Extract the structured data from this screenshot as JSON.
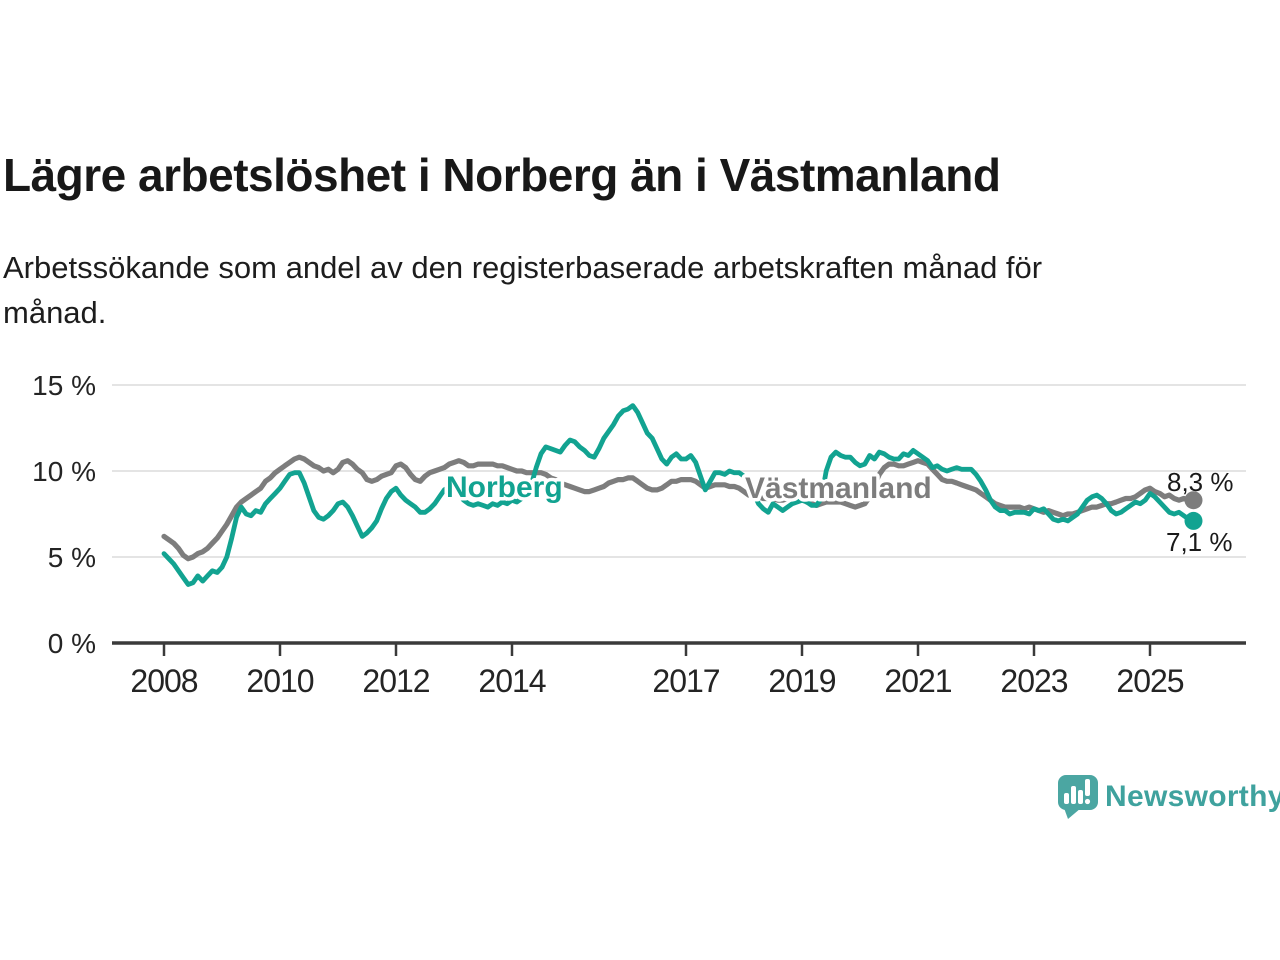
{
  "chart_data": {
    "type": "line",
    "title": "Lägre arbetslöshet i Norberg än i Västmanland",
    "subtitle": [
      "Arbetssökande som andel av den registerbaserade arbetskraften månad för",
      "månad."
    ],
    "x_unit": "month",
    "x_start": "2008-01",
    "x_end": "2025-10",
    "ylim": [
      0,
      15
    ],
    "grid": "horizontal-only",
    "legend": "inline-series-labels",
    "y_ticks": [
      {
        "value": 0,
        "label": "0 %"
      },
      {
        "value": 5,
        "label": "5 %"
      },
      {
        "value": 10,
        "label": "10 %"
      },
      {
        "value": 15,
        "label": "15 %"
      }
    ],
    "x_ticks": [
      {
        "year": 2008,
        "label": "2008"
      },
      {
        "year": 2010,
        "label": "2010"
      },
      {
        "year": 2012,
        "label": "2012"
      },
      {
        "year": 2014,
        "label": "2014"
      },
      {
        "year": 2017,
        "label": "2017"
      },
      {
        "year": 2019,
        "label": "2019"
      },
      {
        "year": 2021,
        "label": "2021"
      },
      {
        "year": 2023,
        "label": "2023"
      },
      {
        "year": 2025,
        "label": "2025"
      }
    ],
    "series": [
      {
        "name": "Västmanland",
        "color": "#7D7D7D",
        "end_value": 8.3,
        "end_value_label": "8,3 %",
        "values": [
          6.2,
          6.0,
          5.8,
          5.5,
          5.1,
          4.9,
          5.0,
          5.2,
          5.3,
          5.5,
          5.8,
          6.1,
          6.5,
          6.9,
          7.4,
          7.9,
          8.2,
          8.4,
          8.6,
          8.8,
          9.0,
          9.4,
          9.6,
          9.9,
          10.1,
          10.3,
          10.5,
          10.7,
          10.8,
          10.7,
          10.5,
          10.3,
          10.2,
          10.0,
          10.1,
          9.9,
          10.1,
          10.5,
          10.6,
          10.4,
          10.1,
          9.9,
          9.5,
          9.4,
          9.5,
          9.7,
          9.8,
          9.9,
          10.3,
          10.4,
          10.2,
          9.8,
          9.5,
          9.4,
          9.7,
          9.9,
          10.0,
          10.1,
          10.2,
          10.4,
          10.5,
          10.6,
          10.5,
          10.3,
          10.3,
          10.4,
          10.4,
          10.4,
          10.4,
          10.3,
          10.3,
          10.2,
          10.1,
          10.0,
          10.0,
          9.9,
          9.9,
          9.9,
          9.9,
          9.8,
          9.6,
          9.5,
          9.3,
          9.2,
          9.1,
          9.0,
          8.9,
          8.8,
          8.8,
          8.9,
          9.0,
          9.1,
          9.3,
          9.4,
          9.5,
          9.5,
          9.6,
          9.6,
          9.4,
          9.2,
          9.0,
          8.9,
          8.9,
          9.0,
          9.2,
          9.4,
          9.4,
          9.5,
          9.5,
          9.5,
          9.4,
          9.2,
          9.0,
          9.1,
          9.2,
          9.2,
          9.2,
          9.1,
          9.1,
          9.0,
          8.8,
          8.6,
          8.5,
          8.5,
          8.4,
          8.4,
          8.4,
          8.3,
          8.3,
          8.4,
          8.4,
          8.4,
          8.4,
          8.2,
          8.1,
          8.0,
          8.1,
          8.2,
          8.2,
          8.2,
          8.2,
          8.1,
          8.0,
          7.9,
          8.0,
          8.1,
          8.5,
          9.2,
          9.8,
          10.2,
          10.4,
          10.4,
          10.3,
          10.3,
          10.4,
          10.5,
          10.6,
          10.5,
          10.4,
          10.1,
          9.8,
          9.5,
          9.4,
          9.4,
          9.3,
          9.2,
          9.1,
          9.0,
          8.9,
          8.7,
          8.5,
          8.3,
          8.1,
          8.0,
          7.9,
          7.9,
          7.9,
          7.9,
          7.8,
          7.9,
          7.8,
          7.7,
          7.6,
          7.7,
          7.6,
          7.5,
          7.4,
          7.5,
          7.5,
          7.6,
          7.7,
          7.8,
          7.9,
          7.9,
          8.0,
          8.1,
          8.1,
          8.2,
          8.3,
          8.4,
          8.4,
          8.5,
          8.7,
          8.9,
          9.0,
          8.8,
          8.7,
          8.5,
          8.6,
          8.4,
          8.3,
          8.4,
          8.3,
          8.3
        ]
      },
      {
        "name": "Norberg",
        "color": "#12A391",
        "end_value": 7.1,
        "end_value_label": "7,1 %",
        "values": [
          5.2,
          4.9,
          4.6,
          4.2,
          3.8,
          3.4,
          3.5,
          3.9,
          3.6,
          3.9,
          4.2,
          4.1,
          4.4,
          5.0,
          6.1,
          7.3,
          7.9,
          7.5,
          7.4,
          7.7,
          7.6,
          8.1,
          8.4,
          8.7,
          9.0,
          9.4,
          9.8,
          9.9,
          9.9,
          9.3,
          8.5,
          7.7,
          7.3,
          7.2,
          7.4,
          7.7,
          8.1,
          8.2,
          7.9,
          7.4,
          6.8,
          6.2,
          6.4,
          6.7,
          7.1,
          7.8,
          8.4,
          8.8,
          9.0,
          8.6,
          8.3,
          8.1,
          7.9,
          7.6,
          7.6,
          7.8,
          8.1,
          8.5,
          8.9,
          9.1,
          8.9,
          8.6,
          8.3,
          8.1,
          8.0,
          8.1,
          8.0,
          7.9,
          8.1,
          8.0,
          8.2,
          8.1,
          8.3,
          8.2,
          8.4,
          8.9,
          9.2,
          10.2,
          11.0,
          11.4,
          11.3,
          11.2,
          11.1,
          11.5,
          11.8,
          11.7,
          11.4,
          11.2,
          10.9,
          10.8,
          11.3,
          11.9,
          12.3,
          12.7,
          13.2,
          13.5,
          13.6,
          13.8,
          13.4,
          12.8,
          12.2,
          11.9,
          11.3,
          10.7,
          10.4,
          10.8,
          11.0,
          10.7,
          10.7,
          10.9,
          10.5,
          9.7,
          8.9,
          9.4,
          9.9,
          9.9,
          9.8,
          10.0,
          9.9,
          9.9,
          9.7,
          9.3,
          8.7,
          8.1,
          7.8,
          7.6,
          8.1,
          7.9,
          7.7,
          7.9,
          8.1,
          8.2,
          8.3,
          8.2,
          8.0,
          8.0,
          8.4,
          10.0,
          10.8,
          11.1,
          10.9,
          10.8,
          10.8,
          10.5,
          10.3,
          10.4,
          10.9,
          10.7,
          11.1,
          11.0,
          10.8,
          10.7,
          10.7,
          11.0,
          10.9,
          11.2,
          11.0,
          10.8,
          10.6,
          10.2,
          10.3,
          10.1,
          10.0,
          10.1,
          10.2,
          10.1,
          10.1,
          10.1,
          9.8,
          9.4,
          8.9,
          8.3,
          7.9,
          7.7,
          7.7,
          7.5,
          7.6,
          7.6,
          7.6,
          7.5,
          7.8,
          7.7,
          7.8,
          7.5,
          7.2,
          7.1,
          7.2,
          7.1,
          7.3,
          7.5,
          7.9,
          8.3,
          8.5,
          8.6,
          8.4,
          8.1,
          7.7,
          7.5,
          7.6,
          7.8,
          8.0,
          8.2,
          8.1,
          8.3,
          8.7,
          8.5,
          8.2,
          7.9,
          7.6,
          7.5,
          7.6,
          7.4,
          7.2,
          7.1
        ]
      }
    ]
  },
  "logo": {
    "brand": "Newsworthy",
    "color": "#3FA29E",
    "icon": "bar-chart-speech-bubble"
  },
  "colors": {
    "background": "#FFFFFF",
    "gridline": "#DCDCDC",
    "axis": "#3A3A3A",
    "text": "#181818"
  }
}
